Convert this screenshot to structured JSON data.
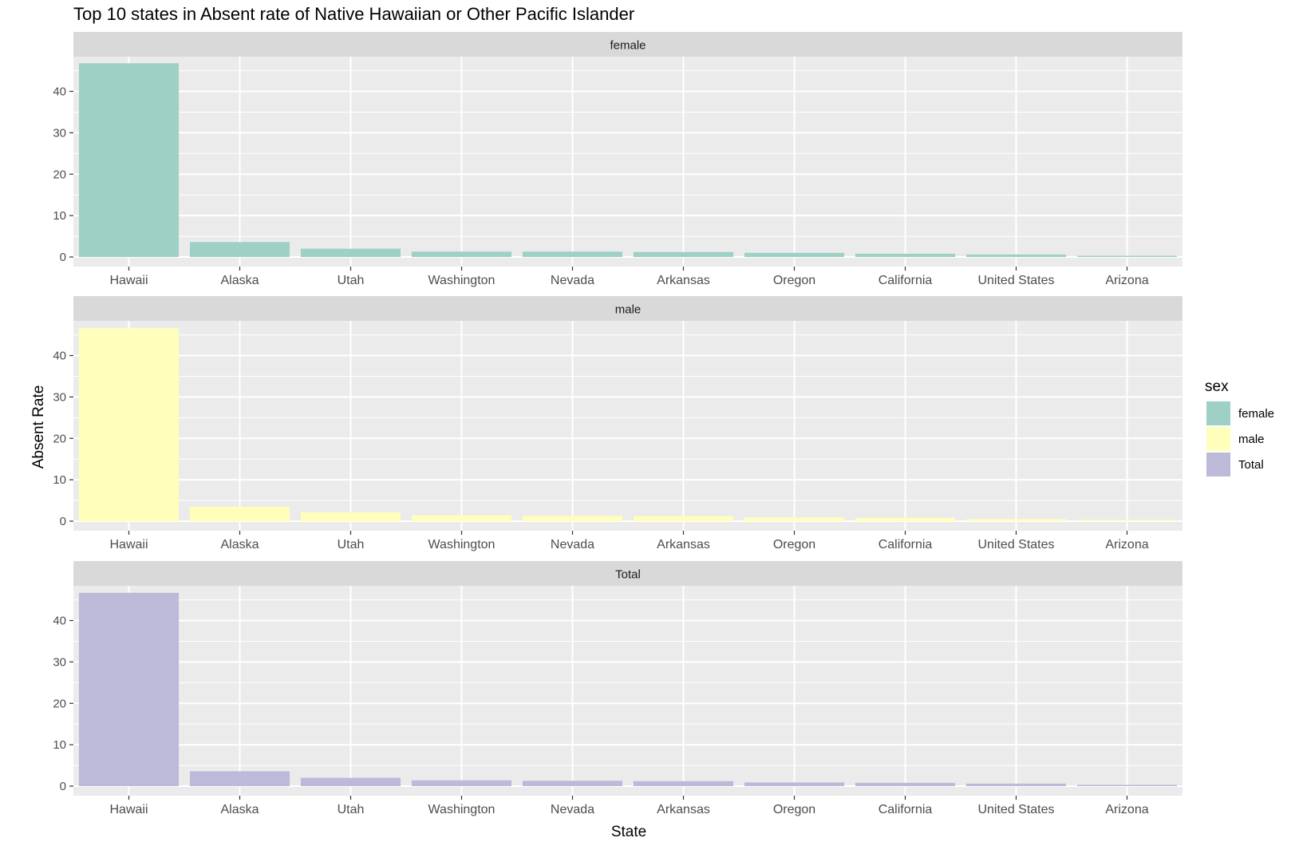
{
  "chart_data": {
    "type": "bar",
    "title": "Top 10 states in Absent rate of Native Hawaiian or Other Pacific Islander",
    "xlabel": "State",
    "ylabel": "Absent Rate",
    "categories": [
      "Hawaii",
      "Alaska",
      "Utah",
      "Washington",
      "Nevada",
      "Arkansas",
      "Oregon",
      "California",
      "United States",
      "Arizona"
    ],
    "ylim": [
      0,
      48
    ],
    "yticks": [
      0,
      10,
      20,
      30,
      40
    ],
    "grid": true,
    "legend": {
      "title": "sex",
      "position": "right"
    },
    "facets": [
      {
        "name": "female",
        "color": "#9ed0c6",
        "values": [
          46.8,
          3.6,
          2.0,
          1.3,
          1.3,
          1.2,
          1.0,
          0.8,
          0.6,
          0.3
        ]
      },
      {
        "name": "male",
        "color": "#ffffbb",
        "values": [
          46.6,
          3.5,
          2.1,
          1.4,
          1.3,
          1.2,
          0.9,
          0.8,
          0.5,
          0.3
        ]
      },
      {
        "name": "Total",
        "color": "#bdb9d9",
        "values": [
          46.7,
          3.6,
          2.0,
          1.4,
          1.3,
          1.2,
          0.9,
          0.8,
          0.6,
          0.3
        ]
      }
    ]
  }
}
